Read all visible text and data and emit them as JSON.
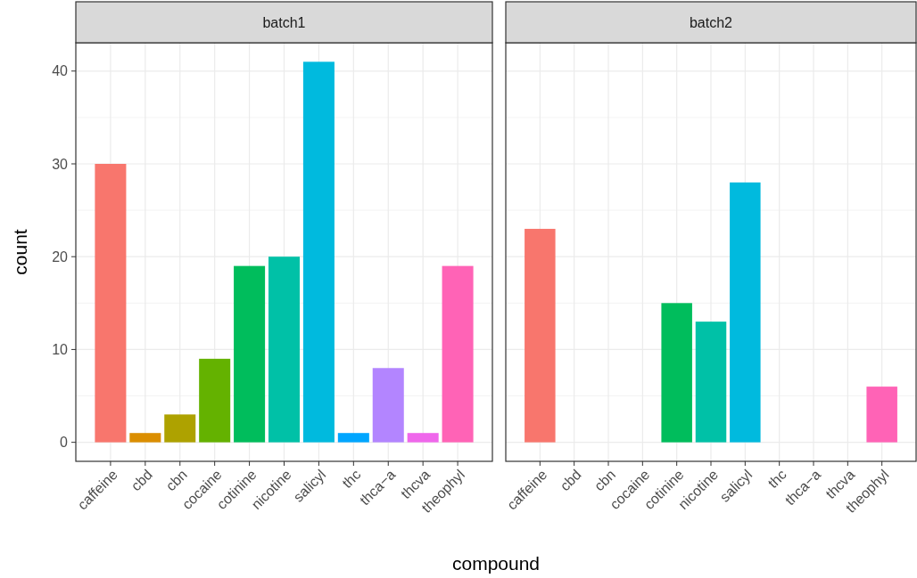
{
  "chart_data": [
    {
      "type": "bar",
      "title": "batch1",
      "xlabel": "compound",
      "ylabel": "count",
      "categories": [
        "caffeine",
        "cbd",
        "cbn",
        "cocaine",
        "cotinine",
        "nicotine",
        "salicyl",
        "thc",
        "thca−a",
        "thcva",
        "theophyl"
      ],
      "values": [
        30,
        1,
        3,
        9,
        19,
        20,
        41,
        1,
        8,
        1,
        19
      ],
      "colors": [
        "#F8766D",
        "#DB8E00",
        "#AEA200",
        "#64B200",
        "#00BD5C",
        "#00C1A7",
        "#00BADE",
        "#00A6FF",
        "#B385FF",
        "#EF67EB",
        "#FF63B6"
      ],
      "ylim": [
        -2.05,
        43.05
      ],
      "yticks": [
        0,
        10,
        20,
        30,
        40
      ],
      "grid": true
    },
    {
      "type": "bar",
      "title": "batch2",
      "categories": [
        "caffeine",
        "cbd",
        "cbn",
        "cocaine",
        "cotinine",
        "nicotine",
        "salicyl",
        "thc",
        "thca−a",
        "thcva",
        "theophyl"
      ],
      "values": [
        23,
        null,
        null,
        null,
        15,
        13,
        28,
        null,
        null,
        null,
        6
      ],
      "colors": [
        "#F8766D",
        null,
        null,
        null,
        "#00BD5C",
        "#00C1A7",
        "#00BADE",
        null,
        null,
        null,
        "#FF63B6"
      ],
      "ylim": [
        -2.05,
        43.05
      ],
      "yticks": [
        0,
        10,
        20,
        30,
        40
      ],
      "grid": true,
      "tick_labels": "x"
    }
  ]
}
